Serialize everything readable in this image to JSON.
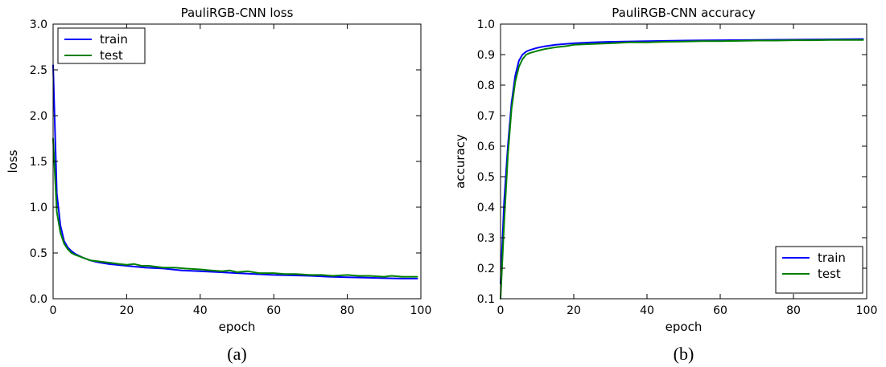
{
  "chart_data": [
    {
      "type": "line",
      "title": "PauliRGB-CNN loss",
      "xlabel": "epoch",
      "ylabel": "loss",
      "caption": "(a)",
      "xlim": [
        0,
        100
      ],
      "ylim": [
        0.0,
        3.0
      ],
      "xticks": [
        0,
        20,
        40,
        60,
        80,
        100
      ],
      "yticks": [
        0.0,
        0.5,
        1.0,
        1.5,
        2.0,
        2.5,
        3.0
      ],
      "ytick_labels": [
        "0.0",
        "0.5",
        "1.0",
        "1.5",
        "2.0",
        "2.5",
        "3.0"
      ],
      "legend": "top-left",
      "grid": false,
      "series": [
        {
          "name": "train",
          "color": "#0000ff",
          "x": [
            0,
            1,
            2,
            3,
            4,
            5,
            6,
            8,
            10,
            12,
            15,
            20,
            25,
            30,
            35,
            40,
            45,
            50,
            55,
            60,
            65,
            70,
            75,
            80,
            85,
            90,
            95,
            99
          ],
          "y": [
            2.55,
            1.15,
            0.8,
            0.63,
            0.56,
            0.52,
            0.49,
            0.45,
            0.42,
            0.4,
            0.38,
            0.36,
            0.34,
            0.33,
            0.31,
            0.3,
            0.29,
            0.28,
            0.27,
            0.26,
            0.255,
            0.25,
            0.24,
            0.235,
            0.23,
            0.225,
            0.22,
            0.22
          ]
        },
        {
          "name": "test",
          "color": "#008000",
          "x": [
            0,
            1,
            2,
            3,
            4,
            5,
            6,
            8,
            10,
            12,
            14,
            16,
            18,
            20,
            22,
            24,
            26,
            28,
            30,
            33,
            36,
            40,
            43,
            46,
            48,
            50,
            53,
            56,
            60,
            63,
            66,
            70,
            73,
            76,
            80,
            83,
            86,
            90,
            92,
            95,
            99
          ],
          "y": [
            1.75,
            0.95,
            0.72,
            0.6,
            0.54,
            0.5,
            0.48,
            0.45,
            0.42,
            0.41,
            0.4,
            0.39,
            0.38,
            0.37,
            0.38,
            0.36,
            0.36,
            0.35,
            0.34,
            0.34,
            0.33,
            0.32,
            0.31,
            0.3,
            0.31,
            0.29,
            0.3,
            0.28,
            0.28,
            0.27,
            0.27,
            0.26,
            0.26,
            0.25,
            0.26,
            0.25,
            0.25,
            0.24,
            0.25,
            0.24,
            0.24
          ]
        }
      ]
    },
    {
      "type": "line",
      "title": "PauliRGB-CNN accuracy",
      "xlabel": "epoch",
      "ylabel": "accuracy",
      "caption": "(b)",
      "xlim": [
        0,
        100
      ],
      "ylim": [
        0.1,
        1.0
      ],
      "xticks": [
        0,
        20,
        40,
        60,
        80,
        100
      ],
      "yticks": [
        0.1,
        0.2,
        0.3,
        0.4,
        0.5,
        0.6,
        0.7,
        0.8,
        0.9,
        1.0
      ],
      "ytick_labels": [
        "0.1",
        "0.2",
        "0.3",
        "0.4",
        "0.5",
        "0.6",
        "0.7",
        "0.8",
        "0.9",
        "1.0"
      ],
      "legend": "bottom-right",
      "grid": false,
      "series": [
        {
          "name": "train",
          "color": "#0000ff",
          "x": [
            0,
            1,
            2,
            3,
            4,
            5,
            6,
            7,
            8,
            10,
            12,
            15,
            20,
            25,
            30,
            40,
            50,
            60,
            70,
            80,
            90,
            99
          ],
          "y": [
            0.15,
            0.42,
            0.6,
            0.74,
            0.83,
            0.88,
            0.9,
            0.91,
            0.915,
            0.922,
            0.927,
            0.932,
            0.937,
            0.94,
            0.942,
            0.944,
            0.946,
            0.947,
            0.948,
            0.949,
            0.95,
            0.951
          ]
        },
        {
          "name": "test",
          "color": "#008000",
          "x": [
            0,
            1,
            2,
            3,
            4,
            5,
            6,
            7,
            8,
            10,
            12,
            15,
            18,
            20,
            25,
            30,
            35,
            40,
            45,
            50,
            55,
            60,
            65,
            70,
            75,
            80,
            85,
            90,
            95,
            99
          ],
          "y": [
            0.1,
            0.35,
            0.57,
            0.72,
            0.81,
            0.86,
            0.885,
            0.9,
            0.905,
            0.912,
            0.918,
            0.924,
            0.928,
            0.932,
            0.935,
            0.937,
            0.94,
            0.94,
            0.942,
            0.943,
            0.944,
            0.944,
            0.945,
            0.946,
            0.946,
            0.947,
            0.947,
            0.948,
            0.948,
            0.948
          ]
        }
      ]
    }
  ]
}
